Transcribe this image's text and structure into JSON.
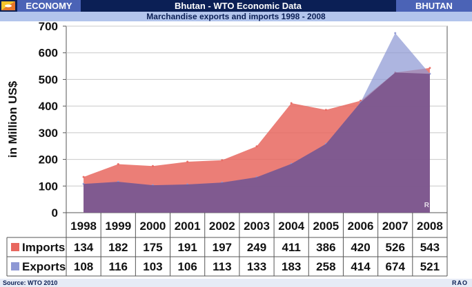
{
  "header": {
    "section": "ECONOMY",
    "title": "Bhutan - WTO Economic Data",
    "country": "BHUTAN",
    "flag_icon": "bhutan-flag-icon"
  },
  "chart_data": {
    "type": "area",
    "title": "Marchandise exports and imports 1998 - 2008",
    "ylabel": "in Million US$",
    "xlabel": "",
    "ylim": [
      0,
      700
    ],
    "yticks": [
      "0",
      "100",
      "200",
      "300",
      "400",
      "500",
      "600",
      "700"
    ],
    "categories": [
      "1998",
      "1999",
      "2000",
      "2001",
      "2002",
      "2003",
      "2004",
      "2005",
      "2006",
      "2007",
      "2008"
    ],
    "series": [
      {
        "name": "Imports",
        "color": "#e8675f",
        "values": [
          134,
          182,
          175,
          191,
          197,
          249,
          411,
          386,
          420,
          526,
          543
        ]
      },
      {
        "name": "Exports",
        "color": "#8e98d4",
        "values": [
          108,
          116,
          103,
          106,
          113,
          133,
          183,
          258,
          414,
          674,
          521
        ]
      }
    ],
    "grid": true,
    "watermark": "RAO"
  },
  "footer": {
    "source": "Source: WTO 2010",
    "credit": "RAO"
  }
}
